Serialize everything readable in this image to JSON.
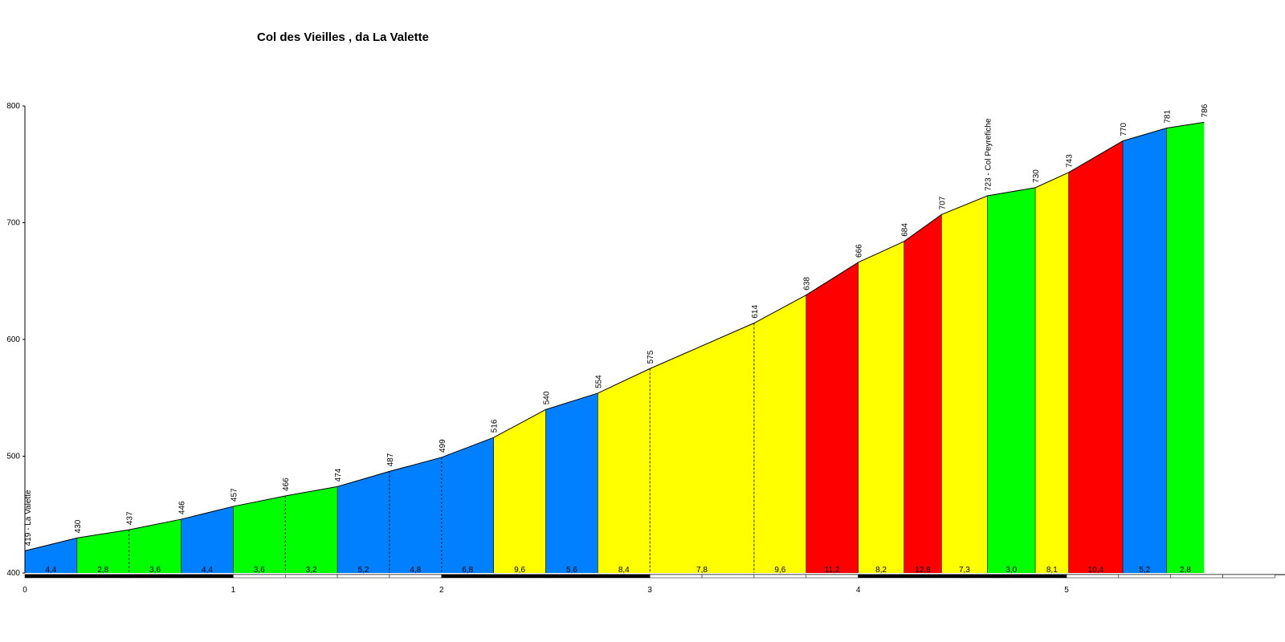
{
  "chart_data": {
    "type": "area",
    "title": "Col des Vieilles , da La Valette",
    "xlabel": "",
    "ylabel": "",
    "xlim": [
      0,
      5.93
    ],
    "ylim": [
      400,
      800
    ],
    "x_ticks": [
      "0",
      "1",
      "2",
      "3",
      "4",
      "5"
    ],
    "y_ticks": [
      "400",
      "500",
      "600",
      "700",
      "800"
    ],
    "grid": false,
    "colors": {
      "blue": "#0080ff",
      "green": "#00ff00",
      "yellow": "#ffff00",
      "red": "#ff0000"
    },
    "points": [
      {
        "x": 0.0,
        "y": 419,
        "label": "419 - La Valette"
      },
      {
        "x": 0.25,
        "y": 430,
        "label": "430"
      },
      {
        "x": 0.5,
        "y": 437,
        "label": "437"
      },
      {
        "x": 0.75,
        "y": 446,
        "label": "446"
      },
      {
        "x": 1.0,
        "y": 457,
        "label": "457"
      },
      {
        "x": 1.25,
        "y": 466,
        "label": "466"
      },
      {
        "x": 1.5,
        "y": 474,
        "label": "474"
      },
      {
        "x": 1.75,
        "y": 487,
        "label": "487"
      },
      {
        "x": 2.0,
        "y": 499,
        "label": "499"
      },
      {
        "x": 2.25,
        "y": 516,
        "label": "516"
      },
      {
        "x": 2.5,
        "y": 540,
        "label": "540"
      },
      {
        "x": 2.75,
        "y": 554,
        "label": "554"
      },
      {
        "x": 3.0,
        "y": 575,
        "label": "575"
      },
      {
        "x": 3.5,
        "y": 614,
        "label": "614"
      },
      {
        "x": 3.75,
        "y": 638,
        "label": "638"
      },
      {
        "x": 4.0,
        "y": 666,
        "label": "666"
      },
      {
        "x": 4.22,
        "y": 684,
        "label": "684"
      },
      {
        "x": 4.4,
        "y": 707,
        "label": "707"
      },
      {
        "x": 4.62,
        "y": 723,
        "label": "723 - Col Peyrefiche"
      },
      {
        "x": 4.85,
        "y": 730,
        "label": "730"
      },
      {
        "x": 5.01,
        "y": 743,
        "label": "743"
      },
      {
        "x": 5.27,
        "y": 770,
        "label": "770"
      },
      {
        "x": 5.48,
        "y": 781,
        "label": "781"
      },
      {
        "x": 5.66,
        "y": 786,
        "label": "786"
      }
    ],
    "segments": [
      {
        "gradient": "4,4",
        "color": "blue"
      },
      {
        "gradient": "2,8",
        "color": "green"
      },
      {
        "gradient": "3,6",
        "color": "green"
      },
      {
        "gradient": "4,4",
        "color": "blue"
      },
      {
        "gradient": "3,6",
        "color": "green"
      },
      {
        "gradient": "3,2",
        "color": "green"
      },
      {
        "gradient": "5,2",
        "color": "blue"
      },
      {
        "gradient": "4,8",
        "color": "blue"
      },
      {
        "gradient": "6,8",
        "color": "blue"
      },
      {
        "gradient": "9,6",
        "color": "yellow"
      },
      {
        "gradient": "5,6",
        "color": "blue"
      },
      {
        "gradient": "8,4",
        "color": "yellow"
      },
      {
        "gradient": "7,8",
        "color": "yellow"
      },
      {
        "gradient": "9,6",
        "color": "yellow"
      },
      {
        "gradient": "11,2",
        "color": "red"
      },
      {
        "gradient": "8,2",
        "color": "yellow"
      },
      {
        "gradient": "12,8",
        "color": "red"
      },
      {
        "gradient": "7,3",
        "color": "yellow"
      },
      {
        "gradient": "3,0",
        "color": "green"
      },
      {
        "gradient": "8,1",
        "color": "yellow"
      },
      {
        "gradient": "10,4",
        "color": "red"
      },
      {
        "gradient": "5,2",
        "color": "blue"
      },
      {
        "gradient": "2,8",
        "color": "green"
      }
    ]
  }
}
